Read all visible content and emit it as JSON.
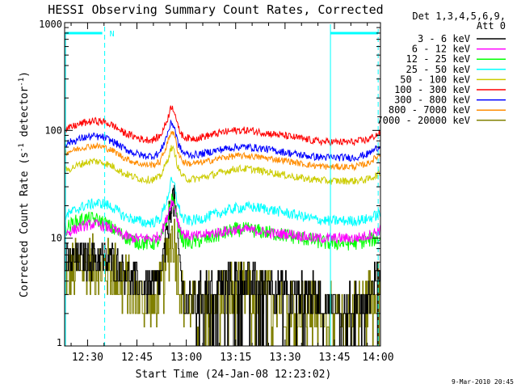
{
  "chart_data": {
    "type": "line",
    "title": "HESSI Observing Summary Count Rates, Corrected",
    "xlabel": "Start Time (24-Jan-08 12:23:02)",
    "ylabel": "Corrected Count Rate (s",
    "ylabel_sup1": "-1",
    "ylabel_mid": " detector",
    "ylabel_sup2": "-1",
    "ylabel_end": ")",
    "y_scale": "log",
    "ylim": [
      1,
      1000
    ],
    "xlim_minutes": [
      23.03,
      119.0
    ],
    "x_ticks": [
      {
        "label": "12:30",
        "minutes": 30
      },
      {
        "label": "12:45",
        "minutes": 45
      },
      {
        "label": "13:00",
        "minutes": 60
      },
      {
        "label": "13:15",
        "minutes": 75
      },
      {
        "label": "13:30",
        "minutes": 90
      },
      {
        "label": "13:45",
        "minutes": 105
      },
      {
        "label": "14:00",
        "minutes": 120
      }
    ],
    "y_ticks": [
      {
        "label": "1000",
        "value": 1000
      },
      {
        "label": "100",
        "value": 100
      },
      {
        "label": "10",
        "value": 10
      },
      {
        "label": "1",
        "value": 1
      }
    ],
    "legend_header": [
      "Det 1,3,4,5,6,9,",
      "Att 0"
    ],
    "legend_position": "right",
    "x_minutes": [
      23.0,
      26.0,
      29.0,
      32.0,
      35.0,
      38.0,
      41.0,
      44.0,
      47.0,
      50.0,
      52.0,
      54.0,
      55.5,
      56.5,
      57.5,
      59.0,
      61.0,
      64.0,
      67.0,
      71.0,
      75.0,
      79.0,
      83.0,
      87.0,
      91.0,
      95.0,
      99.0,
      103.0,
      107.0,
      111.0,
      115.0,
      119.0
    ],
    "series": [
      {
        "name": "3 - 6 keV",
        "color": "#000000",
        "noise": 0.18,
        "gap": true,
        "values": [
          6,
          6,
          6.5,
          6.5,
          6.5,
          6,
          5,
          4,
          3.5,
          3.5,
          4,
          10,
          25,
          20,
          8,
          3,
          2.5,
          3,
          3.5,
          4,
          4.5,
          4,
          3.8,
          3.5,
          3.3,
          3.1,
          3,
          2.5,
          2.2,
          2.5,
          3,
          5
        ]
      },
      {
        "name": "6 - 12 keV",
        "color": "#ff00ff",
        "noise": 0.05,
        "values": [
          11,
          12,
          13,
          13.5,
          13,
          12,
          10.5,
          10,
          10,
          10,
          10.5,
          15,
          22,
          20,
          14,
          11,
          10.5,
          10.5,
          11,
          11.5,
          12,
          12,
          11.5,
          11,
          11,
          10.5,
          10,
          10,
          10,
          10,
          10.5,
          12
        ]
      },
      {
        "name": "12 - 25 keV",
        "color": "#00ff00",
        "noise": 0.07,
        "values": [
          12,
          14,
          15,
          15,
          14,
          12,
          10.5,
          9.5,
          9,
          9,
          9.5,
          14,
          24,
          20,
          13,
          9.5,
          9,
          9.5,
          10,
          11,
          12,
          12,
          11.5,
          11,
          10.5,
          10,
          9.5,
          9,
          9,
          9,
          9.5,
          10
        ]
      },
      {
        "name": "25 - 50 keV",
        "color": "#00ffff",
        "noise": 0.05,
        "values": [
          16,
          18,
          20,
          21,
          21,
          19,
          16,
          15,
          14,
          14,
          15,
          22,
          34,
          30,
          20,
          15,
          14.5,
          15,
          16,
          17.5,
          19,
          19.5,
          19,
          18,
          17,
          16,
          15,
          14.5,
          14.5,
          14.5,
          15,
          17
        ]
      },
      {
        "name": "50 - 100 keV",
        "color": "#cccc00",
        "noise": 0.035,
        "values": [
          42,
          46,
          50,
          52,
          50,
          46,
          40,
          37,
          35,
          35,
          37,
          50,
          70,
          62,
          45,
          37,
          35,
          36,
          38,
          41,
          44,
          44,
          42,
          40,
          38,
          36,
          35,
          34,
          34,
          34,
          35,
          40
        ]
      },
      {
        "name": "100 - 300 keV",
        "color": "#ff0000",
        "noise": 0.035,
        "values": [
          100,
          110,
          118,
          122,
          120,
          110,
          95,
          88,
          82,
          82,
          88,
          120,
          170,
          150,
          105,
          88,
          84,
          86,
          90,
          96,
          100,
          100,
          96,
          92,
          88,
          84,
          80,
          78,
          78,
          78,
          82,
          95
        ]
      },
      {
        "name": "300 - 800 keV",
        "color": "#0000ff",
        "noise": 0.035,
        "values": [
          75,
          80,
          86,
          88,
          86,
          78,
          68,
          62,
          58,
          58,
          62,
          88,
          120,
          105,
          75,
          62,
          59,
          60,
          63,
          67,
          70,
          70,
          68,
          65,
          62,
          59,
          57,
          56,
          56,
          56,
          60,
          72
        ]
      },
      {
        "name": "800 - 7000 keV",
        "color": "#ff8c00",
        "noise": 0.03,
        "values": [
          62,
          66,
          70,
          72,
          70,
          64,
          56,
          51,
          48,
          48,
          51,
          72,
          100,
          88,
          63,
          51,
          49,
          50,
          52,
          56,
          58,
          58,
          56,
          54,
          52,
          49,
          47,
          46,
          46,
          46,
          49,
          60
        ]
      },
      {
        "name": "7000 - 20000 keV",
        "color": "#808000",
        "noise": 0.3,
        "gap": true,
        "values": [
          4.5,
          5,
          5.5,
          5.5,
          5.5,
          5,
          4,
          3,
          2.5,
          2.5,
          3,
          6,
          11,
          9,
          4,
          2.5,
          2,
          2.3,
          2.6,
          3,
          3.3,
          3,
          2.8,
          2.6,
          2.4,
          2.3,
          2.2,
          1.8,
          1.7,
          2,
          2.4,
          4.5
        ]
      }
    ],
    "annotations": [
      {
        "text": "N",
        "color": "#00ffff"
      }
    ]
  },
  "timestamp": "9-Mar-2010 20:45"
}
